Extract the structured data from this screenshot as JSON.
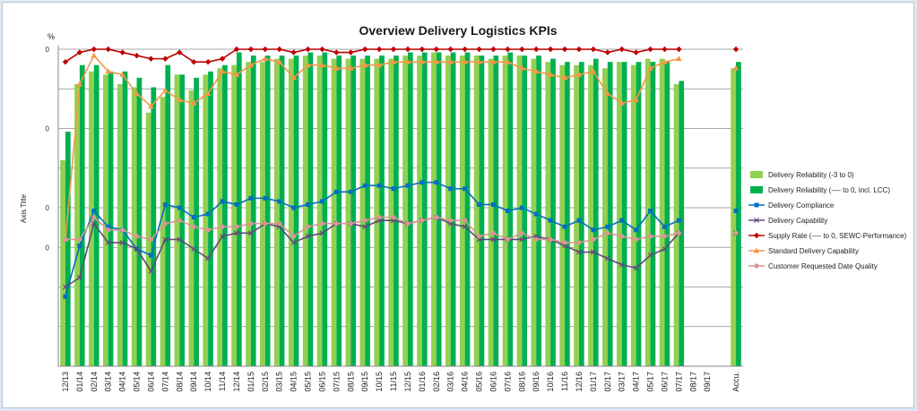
{
  "chart_data": {
    "type": "bar",
    "title": "Overview Delivery Logistics KPIs",
    "ylabel": "Axis Title",
    "yunit": "%",
    "yticks": [
      "0",
      "",
      "0",
      "",
      "0",
      "0",
      "",
      ""
    ],
    "ylim": [
      0,
      100
    ],
    "grid": true,
    "legend_position": "right",
    "categories": [
      "12/13",
      "01/14",
      "02/14",
      "03/14",
      "04/14",
      "05/14",
      "06/14",
      "07/14",
      "08/14",
      "09/14",
      "10/14",
      "11/14",
      "12/14",
      "01/15",
      "02/15",
      "03/15",
      "04/15",
      "05/15",
      "06/15",
      "07/15",
      "08/15",
      "09/15",
      "10/15",
      "11/15",
      "12/15",
      "01/16",
      "02/16",
      "03/16",
      "04/16",
      "05/16",
      "06/16",
      "07/16",
      "08/16",
      "09/16",
      "10/16",
      "11/16",
      "12/16",
      "01/17",
      "02/17",
      "03/17",
      "04/17",
      "05/17",
      "06/17",
      "07/17",
      "08/17",
      "09/17",
      "",
      "Accu."
    ],
    "series": [
      {
        "name": "Delivery Reliability (-3 to 0)",
        "kind": "bar",
        "color": "#92d050",
        "values": [
          65,
          89,
          93,
          92,
          89,
          88,
          80,
          85,
          92,
          87,
          92,
          94,
          95,
          96,
          96,
          97,
          97,
          98,
          98,
          97,
          97,
          97,
          97,
          97,
          98,
          98,
          99,
          98,
          98,
          98,
          97,
          98,
          98,
          97,
          96,
          95,
          95,
          95,
          94,
          96,
          95,
          97,
          97,
          89,
          null,
          null,
          null,
          94
        ]
      },
      {
        "name": "Delivery Reliability (-— to 0, incl. LCC)",
        "kind": "bar",
        "color": "#00b050",
        "values": [
          74,
          95,
          95,
          93,
          93,
          91,
          88,
          95,
          92,
          91,
          93,
          95,
          99,
          98,
          98,
          98,
          98,
          99,
          99,
          98,
          98,
          98,
          98,
          98,
          99,
          99,
          99,
          99,
          99,
          98,
          98,
          99,
          98,
          98,
          97,
          96,
          96,
          97,
          96,
          96,
          96,
          96,
          96,
          90,
          null,
          null,
          null,
          96
        ]
      },
      {
        "name": "Delivery Compliance",
        "kind": "line",
        "color": "#0070c0",
        "marker": "square",
        "values": [
          22,
          38,
          49,
          44,
          43,
          37,
          35,
          51,
          50,
          47,
          48,
          52,
          51,
          53,
          53,
          52,
          50,
          51,
          52,
          55,
          55,
          57,
          57,
          56,
          57,
          58,
          58,
          56,
          56,
          51,
          51,
          49,
          50,
          48,
          46,
          44,
          46,
          43,
          44,
          46,
          43,
          49,
          44,
          46,
          null,
          null,
          null,
          49
        ]
      },
      {
        "name": "Delivery Capability",
        "kind": "line",
        "color": "#604a7b",
        "marker": "x",
        "values": [
          25,
          28,
          45,
          39,
          39,
          37,
          30,
          40,
          40,
          37,
          34,
          41,
          42,
          42,
          45,
          44,
          39,
          41,
          42,
          45,
          45,
          44,
          46,
          46,
          45,
          46,
          47,
          45,
          44,
          40,
          40,
          40,
          40,
          41,
          40,
          38,
          36,
          36,
          34,
          32,
          31,
          35,
          37,
          42,
          null,
          null,
          null,
          42
        ]
      },
      {
        "name": "Supply Rate (-— to 0, SEWC-Performance)",
        "kind": "line",
        "color": "#c00000",
        "marker": "diamond",
        "values": [
          96,
          99,
          100,
          100,
          99,
          98,
          97,
          97,
          99,
          96,
          96,
          97,
          100,
          100,
          100,
          100,
          99,
          100,
          100,
          99,
          99,
          100,
          100,
          100,
          100,
          100,
          100,
          100,
          100,
          100,
          100,
          100,
          100,
          100,
          100,
          100,
          100,
          100,
          99,
          100,
          99,
          100,
          100,
          100,
          null,
          null,
          null,
          100
        ]
      },
      {
        "name": "Standard Delivery Capability",
        "kind": "line",
        "color": "#f79646",
        "marker": "triangle",
        "values": [
          40,
          89,
          98,
          93,
          92,
          86,
          82,
          87,
          84,
          83,
          86,
          93,
          92,
          95,
          97,
          96,
          91,
          95,
          95,
          94,
          94,
          95,
          95,
          96,
          96,
          96,
          96,
          96,
          96,
          96,
          96,
          96,
          94,
          93,
          92,
          91,
          92,
          93,
          86,
          83,
          84,
          94,
          96,
          97,
          null,
          null,
          null,
          94
        ]
      },
      {
        "name": "Customer Requested Date Quality",
        "kind": "line",
        "color": "#d99694",
        "marker": "circle",
        "values": [
          40,
          40,
          47,
          43,
          43,
          41,
          40,
          45,
          46,
          44,
          43,
          44,
          44,
          45,
          45,
          45,
          41,
          44,
          45,
          45,
          45,
          46,
          47,
          47,
          45,
          46,
          47,
          46,
          46,
          41,
          42,
          40,
          42,
          40,
          40,
          39,
          39,
          40,
          42,
          41,
          40,
          41,
          41,
          42,
          null,
          null,
          null,
          42
        ]
      }
    ]
  }
}
